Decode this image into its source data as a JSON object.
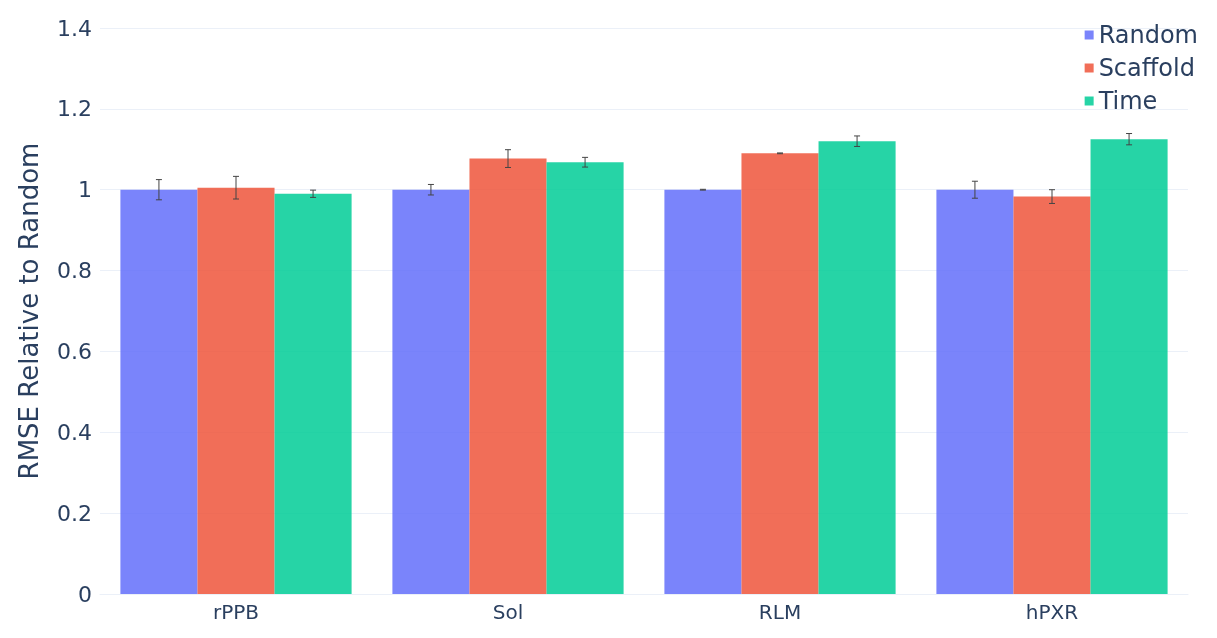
{
  "chart_data": {
    "type": "bar",
    "ylabel": "RMSE Relative to Random",
    "categories": [
      "rPPB",
      "Sol",
      "RLM",
      "hPXR"
    ],
    "series": [
      {
        "name": "Random",
        "color": "#636efa",
        "values": [
          1.0,
          1.0,
          1.0,
          1.0
        ],
        "errors": [
          0.025,
          0.013,
          0.001,
          0.021
        ]
      },
      {
        "name": "Scaffold",
        "color": "#ef553b",
        "values": [
          1.005,
          1.077,
          1.09,
          0.983
        ],
        "errors": [
          0.028,
          0.022,
          0.001,
          0.017
        ]
      },
      {
        "name": "Time",
        "color": "#00cc96",
        "values": [
          0.99,
          1.068,
          1.12,
          1.125
        ],
        "errors": [
          0.009,
          0.012,
          0.013,
          0.014
        ]
      }
    ],
    "ylim": [
      0,
      1.4
    ],
    "yticks": [
      0,
      0.2,
      0.4,
      0.6,
      0.8,
      1,
      1.2,
      1.4
    ],
    "grid": "y",
    "legend": "top right"
  }
}
